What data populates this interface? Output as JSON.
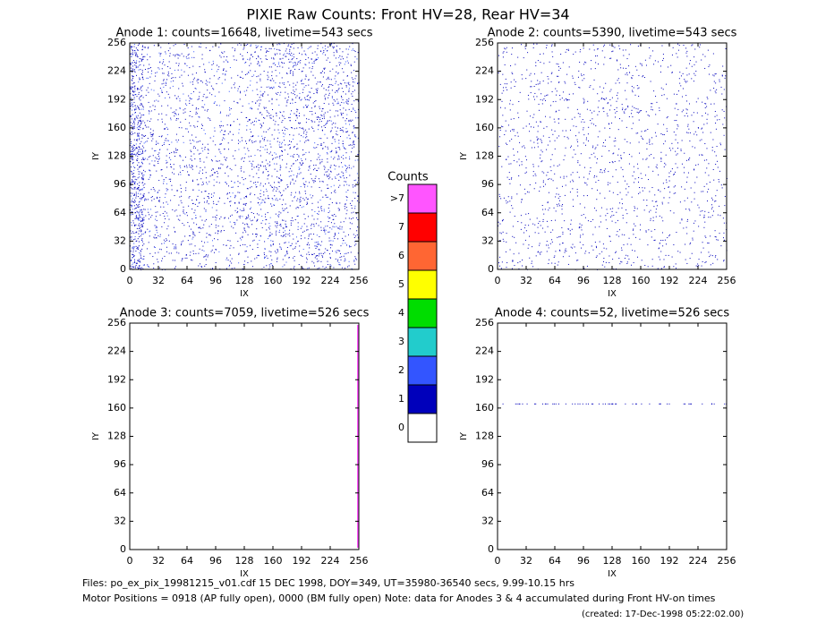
{
  "title": "PIXIE Raw Counts:  Front HV=28, Rear HV=34",
  "chart_data": [
    {
      "type": "image",
      "title": "Anode 1: counts=16648, livetime=543 secs",
      "x_label": "IX",
      "y_label": "IY",
      "xlim": [
        0,
        256
      ],
      "ylim": [
        0,
        256
      ],
      "xticks": [
        0,
        32,
        64,
        96,
        128,
        160,
        192,
        224,
        256
      ],
      "yticks": [
        0,
        32,
        64,
        96,
        128,
        160,
        192,
        224,
        256
      ]
    },
    {
      "type": "image",
      "title": "Anode 2: counts=5390, livetime=543 secs",
      "x_label": "IX",
      "y_label": "IY",
      "xlim": [
        0,
        256
      ],
      "ylim": [
        0,
        256
      ],
      "xticks": [
        0,
        32,
        64,
        96,
        128,
        160,
        192,
        224,
        256
      ],
      "yticks": [
        0,
        32,
        64,
        96,
        128,
        160,
        192,
        224,
        256
      ]
    },
    {
      "type": "image",
      "title": "Anode 3: counts=7059, livetime=526 secs",
      "x_label": "IX",
      "y_label": "IY",
      "xlim": [
        0,
        256
      ],
      "ylim": [
        0,
        256
      ],
      "xticks": [
        0,
        32,
        64,
        96,
        128,
        160,
        192,
        224,
        256
      ],
      "yticks": [
        0,
        32,
        64,
        96,
        128,
        160,
        192,
        224,
        256
      ]
    },
    {
      "type": "image",
      "title": "Anode 4: counts=52, livetime=526 secs",
      "x_label": "IX",
      "y_label": "IY",
      "xlim": [
        0,
        256
      ],
      "ylim": [
        0,
        256
      ],
      "xticks": [
        0,
        32,
        64,
        96,
        128,
        160,
        192,
        224,
        256
      ],
      "yticks": [
        0,
        32,
        64,
        96,
        128,
        160,
        192,
        224,
        256
      ]
    }
  ],
  "colorbar": {
    "title": "Counts",
    "labels": [
      "0",
      "1",
      "2",
      "3",
      "4",
      "5",
      "6",
      "7",
      ">7"
    ],
    "colors": [
      "#ffffff",
      "#0000bb",
      "#3355ff",
      "#22cccc",
      "#00dd00",
      "#ffff00",
      "#ff6633",
      "#ff0000",
      "#ff55ff"
    ]
  },
  "footer": {
    "files": "Files: po_ex_pix_19981215_v01.cdf   15 DEC 1998, DOY=349, UT=35980-36540 secs,  9.99-10.15 hrs",
    "motor": "Motor Positions = 0918 (AP fully open), 0000 (BM fully open)    Note: data for Anodes 3 & 4 accumulated during Front HV-on times",
    "created": "(created: 17-Dec-1998 05:22:02.00)"
  }
}
